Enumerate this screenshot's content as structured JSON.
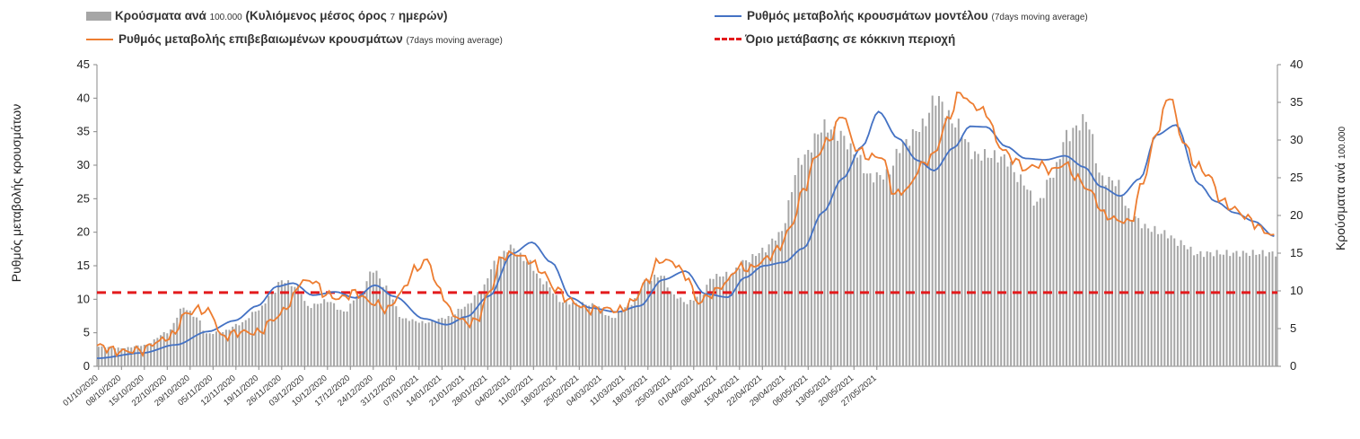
{
  "chart_data": {
    "type": "bar+line",
    "legend": {
      "bars": {
        "main": "Κρούσματα ανά ",
        "num": "100.000",
        "tail": " (Κυλιόμενος μέσος όρος ",
        "n": "7",
        "end": " ημερών)"
      },
      "model": {
        "main": "Ρυθμός μεταβολής κρουσμάτων μοντέλου ",
        "note": "(7days moving average)"
      },
      "confirmed": {
        "main": "Ρυθμός μεταβολής επιβεβαιωμένων κρουσμάτων ",
        "note": "(7days moving average)"
      },
      "threshold": {
        "main": "Όριο μετάβασης σε κόκκινη περιοχή"
      }
    },
    "ylabel_left": "Ρυθμός μεταβολής κρουσμάτων",
    "ylabel_right_main": "Κρούσματα ανά ",
    "ylabel_right_num": "100.000",
    "left_axis": {
      "min": 0,
      "max": 45,
      "ticks": [
        0,
        5,
        10,
        15,
        20,
        25,
        30,
        35,
        40,
        45
      ]
    },
    "right_axis": {
      "min": 0,
      "max": 40,
      "ticks": [
        0,
        5,
        10,
        15,
        20,
        25,
        30,
        35,
        40
      ]
    },
    "x_tick_labels": [
      "01/10/2020",
      "08/10/2020",
      "15/10/2020",
      "22/10/2020",
      "29/10/2020",
      "05/11/2020",
      "12/11/2020",
      "19/11/2020",
      "26/11/2020",
      "03/12/2020",
      "10/12/2020",
      "17/12/2020",
      "24/12/2020",
      "31/12/2020",
      "07/01/2021",
      "14/01/2021",
      "21/01/2021",
      "28/01/2021",
      "04/02/2021",
      "11/02/2021",
      "18/02/2021",
      "25/02/2021",
      "04/03/2021",
      "11/03/2021",
      "18/03/2021",
      "25/03/2021",
      "01/04/2021",
      "08/04/2021",
      "15/04/2021",
      "22/04/2021",
      "29/04/2021",
      "06/05/2021",
      "13/05/2021",
      "20/05/2021",
      "27/05/2021"
    ],
    "threshold": 11,
    "colors": {
      "bars": "#a6a6a6",
      "model": "#4472c4",
      "confirmed": "#ed7d31",
      "threshold": "#e31a1c",
      "axis": "#888888"
    },
    "days": 245,
    "cases_anchors_right_axis": [
      [
        0,
        2.6
      ],
      [
        7,
        2.4
      ],
      [
        14,
        2.8
      ],
      [
        21,
        4.5
      ],
      [
        26,
        7.8
      ],
      [
        30,
        6.5
      ],
      [
        33,
        4.3
      ],
      [
        38,
        4.6
      ],
      [
        43,
        5.6
      ],
      [
        49,
        7.5
      ],
      [
        53,
        9.6
      ],
      [
        56,
        11.4
      ],
      [
        61,
        10.5
      ],
      [
        64,
        7.9
      ],
      [
        70,
        8.7
      ],
      [
        75,
        7.2
      ],
      [
        80,
        9.7
      ],
      [
        84,
        12.8
      ],
      [
        88,
        10.4
      ],
      [
        93,
        6.3
      ],
      [
        100,
        5.8
      ],
      [
        107,
        6.5
      ],
      [
        112,
        7.9
      ],
      [
        117,
        10.0
      ],
      [
        121,
        13.6
      ],
      [
        126,
        15.8
      ],
      [
        131,
        14.0
      ],
      [
        136,
        11.2
      ],
      [
        142,
        8.5
      ],
      [
        147,
        8.3
      ],
      [
        152,
        8.1
      ],
      [
        157,
        6.4
      ],
      [
        162,
        8.1
      ],
      [
        168,
        11.5
      ],
      [
        172,
        12.1
      ],
      [
        176,
        9.4
      ],
      [
        180,
        8.4
      ],
      [
        184,
        9.4
      ],
      [
        188,
        11.9
      ],
      [
        193,
        12.2
      ],
      [
        198,
        14.0
      ],
      [
        203,
        15.3
      ],
      [
        208,
        17.4
      ],
      [
        215,
        27.5
      ],
      [
        222,
        31.8
      ],
      [
        227,
        30.7
      ],
      [
        231,
        28.4
      ],
      [
        236,
        25.1
      ],
      [
        241,
        25.4
      ],
      [
        246,
        29.5
      ],
      [
        252,
        31.9
      ],
      [
        256,
        35.6
      ],
      [
        262,
        32.2
      ],
      [
        268,
        28.0
      ],
      [
        272,
        28.0
      ],
      [
        277,
        27.6
      ],
      [
        282,
        24.7
      ],
      [
        287,
        21.6
      ],
      [
        292,
        25.5
      ],
      [
        296,
        30.6
      ],
      [
        302,
        32.7
      ],
      [
        307,
        24.8
      ],
      [
        311,
        24.5
      ],
      [
        316,
        19.9
      ],
      [
        321,
        18.3
      ],
      [
        326,
        17.6
      ],
      [
        331,
        16.3
      ],
      [
        336,
        14.9
      ],
      [
        340,
        15.0
      ]
    ],
    "model_anchors": [
      [
        0,
        1.2
      ],
      [
        14,
        2.0
      ],
      [
        24,
        3.2
      ],
      [
        34,
        5.2
      ],
      [
        42,
        6.8
      ],
      [
        49,
        9.0
      ],
      [
        55,
        11.9
      ],
      [
        60,
        12.4
      ],
      [
        66,
        10.6
      ],
      [
        73,
        11.1
      ],
      [
        79,
        10.2
      ],
      [
        85,
        12.1
      ],
      [
        91,
        10.4
      ],
      [
        100,
        7.1
      ],
      [
        107,
        6.2
      ],
      [
        113,
        7.4
      ],
      [
        120,
        10.5
      ],
      [
        127,
        16.8
      ],
      [
        133,
        18.5
      ],
      [
        139,
        15.5
      ],
      [
        145,
        10.2
      ],
      [
        151,
        8.7
      ],
      [
        159,
        8.1
      ],
      [
        166,
        9.0
      ],
      [
        173,
        12.9
      ],
      [
        180,
        14.2
      ],
      [
        186,
        10.8
      ],
      [
        193,
        10.3
      ],
      [
        198,
        13.2
      ],
      [
        204,
        15.0
      ],
      [
        210,
        15.5
      ],
      [
        216,
        17.6
      ],
      [
        222,
        23.0
      ],
      [
        228,
        28.0
      ],
      [
        234,
        32.8
      ],
      [
        239,
        38.0
      ],
      [
        245,
        34.0
      ],
      [
        251,
        30.7
      ],
      [
        256,
        29.2
      ],
      [
        262,
        32.6
      ],
      [
        267,
        35.8
      ],
      [
        272,
        35.7
      ],
      [
        278,
        32.8
      ],
      [
        284,
        31.0
      ],
      [
        290,
        30.8
      ],
      [
        296,
        31.4
      ],
      [
        302,
        29.7
      ],
      [
        307,
        26.8
      ],
      [
        313,
        25.4
      ],
      [
        319,
        28.0
      ],
      [
        324,
        34.5
      ],
      [
        330,
        36.0
      ],
      [
        337,
        27.2
      ],
      [
        342,
        24.6
      ],
      [
        348,
        22.9
      ],
      [
        354,
        21.6
      ],
      [
        360,
        19.4
      ]
    ],
    "confirmed_anchors": [
      [
        0,
        3.1
      ],
      [
        7,
        2.2
      ],
      [
        14,
        2.4
      ],
      [
        18,
        3.6
      ],
      [
        23,
        4.5
      ],
      [
        27,
        7.8
      ],
      [
        31,
        8.5
      ],
      [
        35,
        8.0
      ],
      [
        38,
        4.4
      ],
      [
        44,
        5.1
      ],
      [
        49,
        5.0
      ],
      [
        55,
        7.3
      ],
      [
        59,
        9.3
      ],
      [
        62,
        12.5
      ],
      [
        66,
        12.8
      ],
      [
        70,
        10.7
      ],
      [
        74,
        10.1
      ],
      [
        79,
        11.0
      ],
      [
        84,
        9.5
      ],
      [
        89,
        8.5
      ],
      [
        93,
        11.0
      ],
      [
        97,
        14.3
      ],
      [
        101,
        15.8
      ],
      [
        105,
        11.1
      ],
      [
        109,
        7.7
      ],
      [
        113,
        6.5
      ],
      [
        116,
        6.7
      ],
      [
        120,
        11.0
      ],
      [
        124,
        16.4
      ],
      [
        128,
        16.8
      ],
      [
        132,
        15.9
      ],
      [
        136,
        14.2
      ],
      [
        140,
        11.6
      ],
      [
        145,
        9.7
      ],
      [
        150,
        8.4
      ],
      [
        155,
        8.6
      ],
      [
        160,
        8.3
      ],
      [
        164,
        9.7
      ],
      [
        168,
        12.6
      ],
      [
        172,
        15.8
      ],
      [
        176,
        15.6
      ],
      [
        180,
        13.6
      ],
      [
        184,
        9.5
      ],
      [
        188,
        10.8
      ],
      [
        192,
        12.3
      ],
      [
        196,
        14.7
      ],
      [
        200,
        14.6
      ],
      [
        204,
        15.8
      ],
      [
        208,
        17.3
      ],
      [
        212,
        20.5
      ],
      [
        216,
        26.2
      ],
      [
        220,
        31.4
      ],
      [
        224,
        33.9
      ],
      [
        228,
        37.6
      ],
      [
        232,
        32.6
      ],
      [
        236,
        31.2
      ],
      [
        240,
        31.3
      ],
      [
        244,
        25.6
      ],
      [
        248,
        26.5
      ],
      [
        252,
        29.9
      ],
      [
        256,
        31.6
      ],
      [
        260,
        36.6
      ],
      [
        264,
        40.8
      ],
      [
        268,
        38.9
      ],
      [
        272,
        37.8
      ],
      [
        276,
        32.8
      ],
      [
        280,
        31.0
      ],
      [
        284,
        29.4
      ],
      [
        288,
        30.1
      ],
      [
        292,
        29.2
      ],
      [
        296,
        30.2
      ],
      [
        300,
        27.9
      ],
      [
        304,
        26.0
      ],
      [
        308,
        22.6
      ],
      [
        312,
        21.8
      ],
      [
        316,
        21.5
      ],
      [
        320,
        27.7
      ],
      [
        324,
        34.8
      ],
      [
        328,
        40.5
      ],
      [
        332,
        33.7
      ],
      [
        336,
        30.0
      ],
      [
        340,
        28.5
      ],
      [
        344,
        24.6
      ],
      [
        348,
        23.4
      ],
      [
        352,
        22.1
      ],
      [
        356,
        20.5
      ],
      [
        360,
        19.3
      ]
    ]
  }
}
